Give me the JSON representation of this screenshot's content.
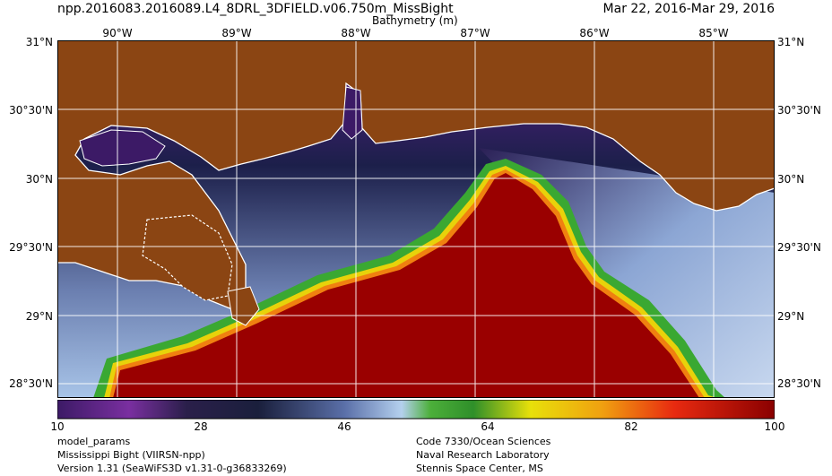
{
  "header": {
    "title": "npp.2016083.2016089.L4_8DRL_3DFIELD.v06.750m_MissBight",
    "date_range": "Mar 22, 2016-Mar 29, 2016",
    "variable_label": "Bathymetry (m)"
  },
  "map": {
    "top_lon_labels": [
      "90°W",
      "89°W",
      "88°W",
      "87°W",
      "86°W",
      "85°W"
    ],
    "lat_labels_left": [
      "31°N",
      "30°30'N",
      "30°N",
      "29°30'N",
      "29°N",
      "28°30'N"
    ],
    "lat_labels_right": [
      "31°N",
      "30°30'N",
      "30°N",
      "29°30'N",
      "29°N",
      "28°30'N"
    ],
    "land_color": "#8b4513",
    "coastline_color": "#ffffff",
    "gridline_color": "#ffffff"
  },
  "colorbar": {
    "min": 10,
    "max": 100,
    "tick_labels": [
      "10",
      "28",
      "46",
      "64",
      "82",
      "100"
    ]
  },
  "footer": {
    "left": [
      "model_params",
      "Mississippi Bight (VIIRSN-npp)",
      "Version 1.31 (SeaWiFS3D v1.31-0-g36833269)"
    ],
    "right": [
      "Code 7330/Ocean Sciences",
      "Naval Research Laboratory",
      "Stennis Space Center, MS"
    ]
  }
}
